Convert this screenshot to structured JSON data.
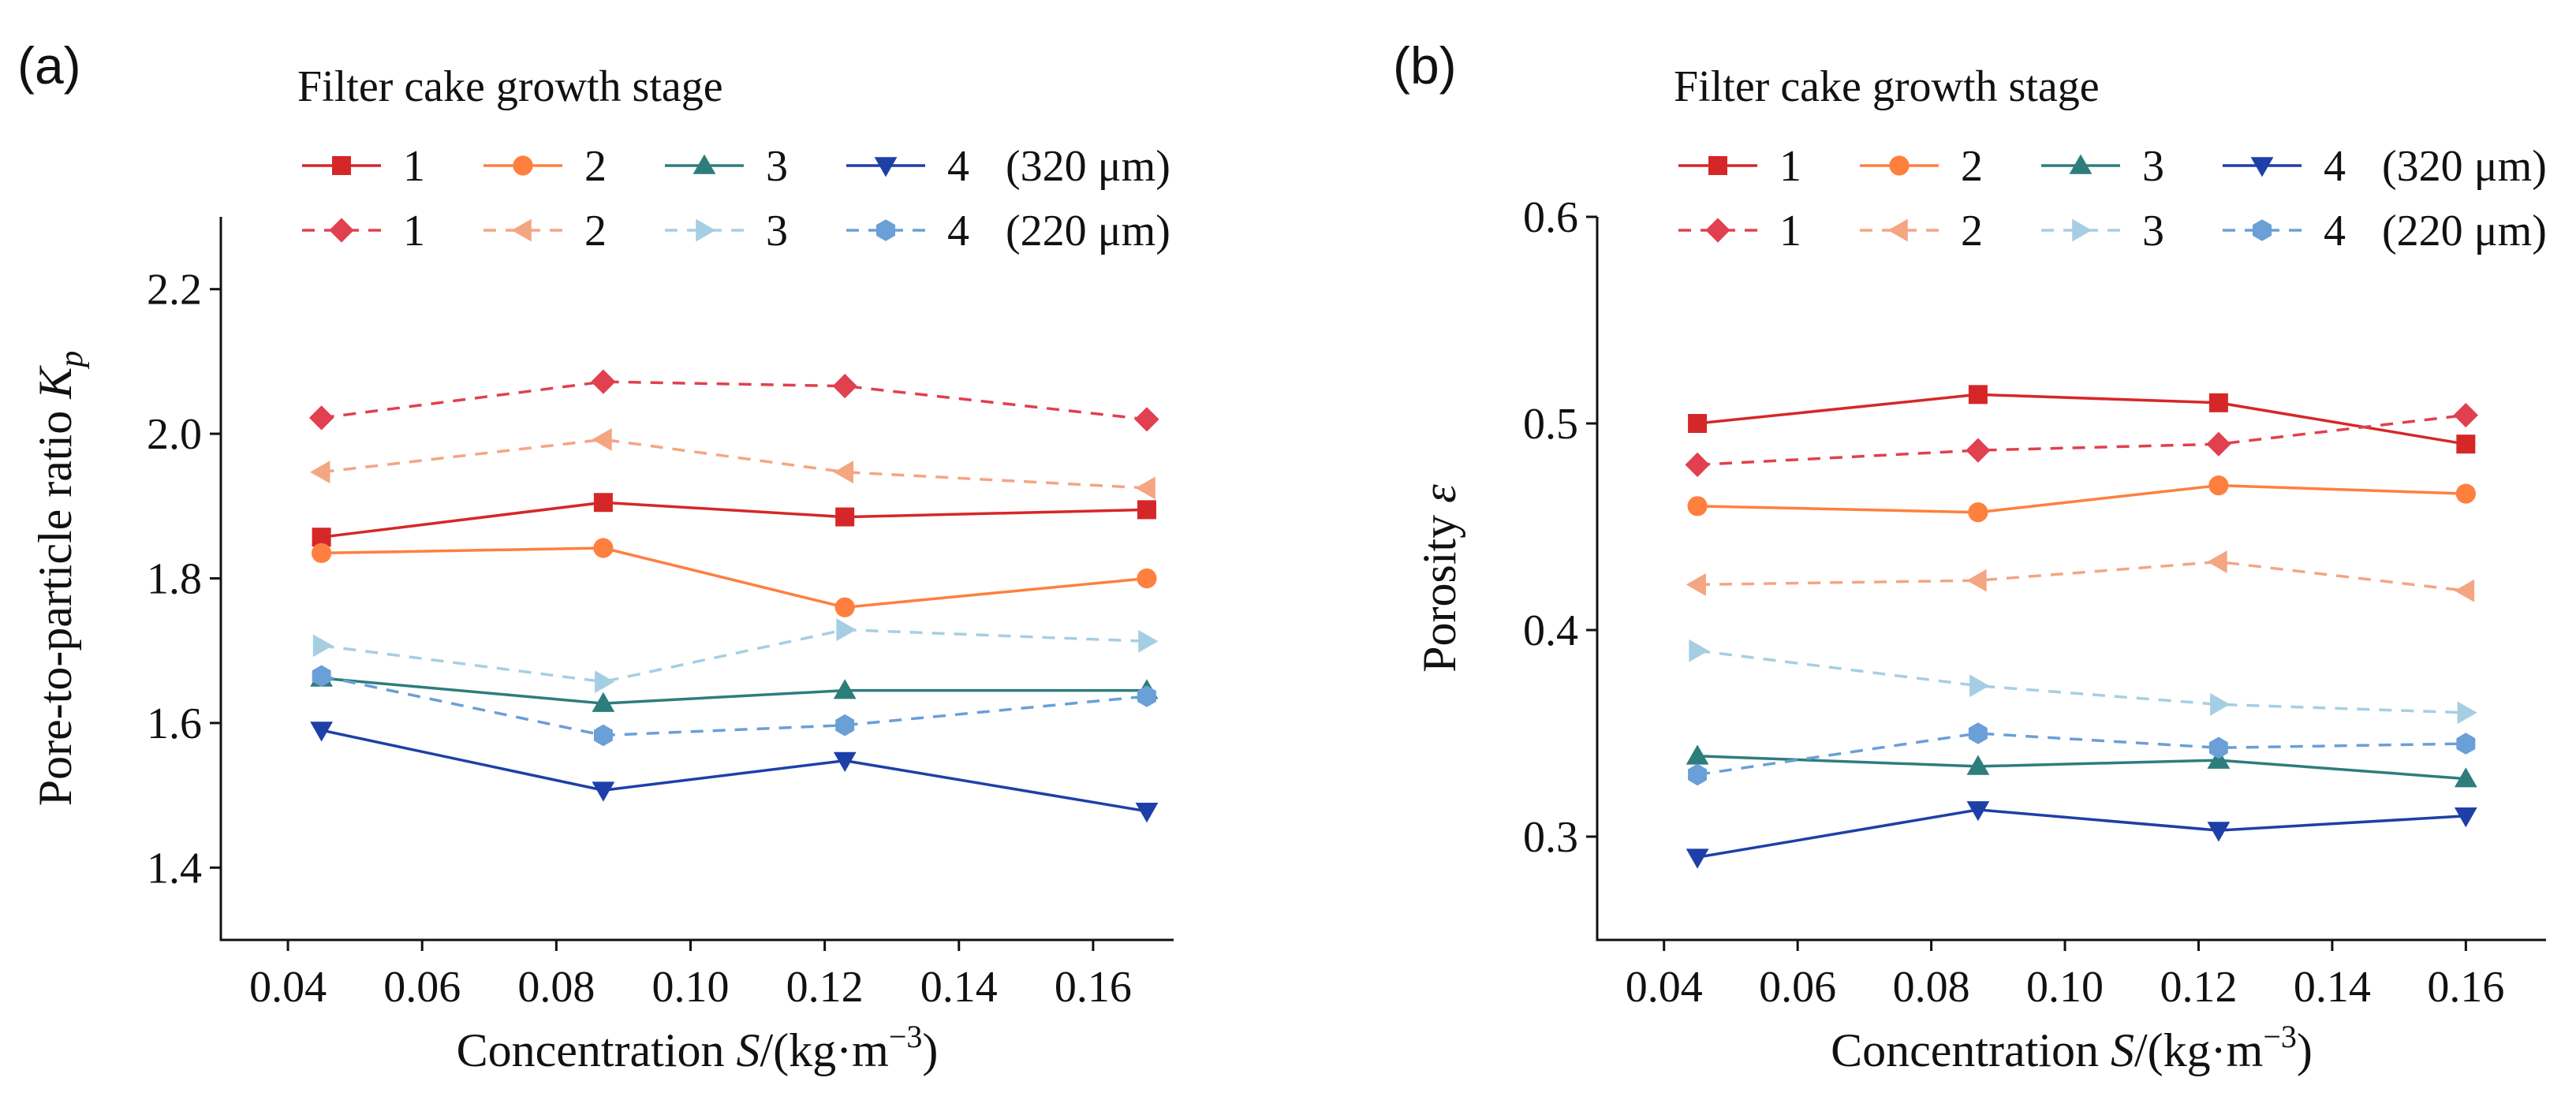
{
  "chart_data": [
    {
      "type": "line",
      "panel_label": "(a)",
      "legend_title": "Filter cake growth stage",
      "legend_suffix_solid": "(320 μm)",
      "legend_suffix_dashed": "(220 μm)",
      "ylabel": "Pore-to-particle ratio ",
      "ylabel_symbol": "K",
      "ylabel_sub": "p",
      "xlabel_prefix": "Concentration ",
      "xlabel_symbol": "S",
      "xlabel_units": "/(kg·m",
      "xlabel_exp": "−3",
      "xlabel_close": ")",
      "xlim": [
        0.03,
        0.172
      ],
      "ylim": [
        1.3,
        2.3
      ],
      "xticks": [
        0.04,
        0.06,
        0.08,
        0.1,
        0.12,
        0.14,
        0.16
      ],
      "xtick_labels": [
        "0.04",
        "0.06",
        "0.08",
        "0.10",
        "0.12",
        "0.14",
        "0.16"
      ],
      "yticks": [
        1.4,
        1.6,
        1.8,
        2.0,
        2.2
      ],
      "ytick_labels": [
        "1.4",
        "1.6",
        "1.8",
        "2.0",
        "2.2"
      ],
      "x": [
        0.045,
        0.087,
        0.123,
        0.168
      ],
      "series": [
        {
          "name": "1",
          "group": "320 μm",
          "color": "#d62728",
          "dashed": false,
          "marker": "square",
          "values": [
            1.857,
            1.905,
            1.885,
            1.895
          ]
        },
        {
          "name": "2",
          "group": "320 μm",
          "color": "#ff7f3f",
          "dashed": false,
          "marker": "circle",
          "values": [
            1.835,
            1.842,
            1.76,
            1.8
          ]
        },
        {
          "name": "3",
          "group": "320 μm",
          "color": "#2e7d7d",
          "dashed": false,
          "marker": "triangle-up",
          "values": [
            1.662,
            1.627,
            1.645,
            1.645
          ]
        },
        {
          "name": "4",
          "group": "320 μm",
          "color": "#1f3fa8",
          "dashed": false,
          "marker": "triangle-down",
          "values": [
            1.59,
            1.507,
            1.548,
            1.478
          ]
        },
        {
          "name": "1",
          "group": "220 μm",
          "color": "#e0404f",
          "dashed": true,
          "marker": "diamond",
          "values": [
            2.022,
            2.072,
            2.066,
            2.02
          ]
        },
        {
          "name": "2",
          "group": "220 μm",
          "color": "#f4a582",
          "dashed": true,
          "marker": "triangle-left",
          "values": [
            1.947,
            1.992,
            1.947,
            1.925
          ]
        },
        {
          "name": "3",
          "group": "220 μm",
          "color": "#a6cee3",
          "dashed": true,
          "marker": "triangle-right",
          "values": [
            1.707,
            1.657,
            1.729,
            1.713
          ]
        },
        {
          "name": "4",
          "group": "220 μm",
          "color": "#6a9fd8",
          "dashed": true,
          "marker": "hexagon",
          "values": [
            1.665,
            1.583,
            1.597,
            1.637
          ]
        }
      ]
    },
    {
      "type": "line",
      "panel_label": "(b)",
      "legend_title": "Filter cake growth stage",
      "legend_suffix_solid": "(320 μm)",
      "legend_suffix_dashed": "(220 μm)",
      "ylabel": "Porosity ",
      "ylabel_symbol": "ε",
      "ylabel_sub": "",
      "xlabel_prefix": "Concentration ",
      "xlabel_symbol": "S",
      "xlabel_units": "/(kg·m",
      "xlabel_exp": "−3",
      "xlabel_close": ")",
      "xlim": [
        0.03,
        0.172
      ],
      "ylim": [
        0.25,
        0.6
      ],
      "xticks": [
        0.04,
        0.06,
        0.08,
        0.1,
        0.12,
        0.14,
        0.16
      ],
      "xtick_labels": [
        "0.04",
        "0.06",
        "0.08",
        "0.10",
        "0.12",
        "0.14",
        "0.16"
      ],
      "yticks": [
        0.3,
        0.4,
        0.5,
        0.6
      ],
      "ytick_labels": [
        "0.3",
        "0.4",
        "0.5",
        "0.6"
      ],
      "x": [
        0.045,
        0.087,
        0.123,
        0.16
      ],
      "series": [
        {
          "name": "1",
          "group": "320 μm",
          "color": "#d62728",
          "dashed": false,
          "marker": "square",
          "values": [
            0.5,
            0.514,
            0.51,
            0.49
          ]
        },
        {
          "name": "2",
          "group": "320 μm",
          "color": "#ff7f3f",
          "dashed": false,
          "marker": "circle",
          "values": [
            0.46,
            0.457,
            0.47,
            0.466
          ]
        },
        {
          "name": "3",
          "group": "320 μm",
          "color": "#2e7d7d",
          "dashed": false,
          "marker": "triangle-up",
          "values": [
            0.339,
            0.334,
            0.337,
            0.328
          ]
        },
        {
          "name": "4",
          "group": "320 μm",
          "color": "#1f3fa8",
          "dashed": false,
          "marker": "triangle-down",
          "values": [
            0.29,
            0.313,
            0.303,
            0.31
          ]
        },
        {
          "name": "1",
          "group": "220 μm",
          "color": "#e0404f",
          "dashed": true,
          "marker": "diamond",
          "values": [
            0.48,
            0.487,
            0.49,
            0.504
          ]
        },
        {
          "name": "2",
          "group": "220 μm",
          "color": "#f4a582",
          "dashed": true,
          "marker": "triangle-left",
          "values": [
            0.422,
            0.424,
            0.433,
            0.419
          ]
        },
        {
          "name": "3",
          "group": "220 μm",
          "color": "#a6cee3",
          "dashed": true,
          "marker": "triangle-right",
          "values": [
            0.39,
            0.373,
            0.364,
            0.36
          ]
        },
        {
          "name": "4",
          "group": "220 μm",
          "color": "#6a9fd8",
          "dashed": true,
          "marker": "hexagon",
          "values": [
            0.33,
            0.35,
            0.343,
            0.345
          ]
        }
      ]
    }
  ]
}
